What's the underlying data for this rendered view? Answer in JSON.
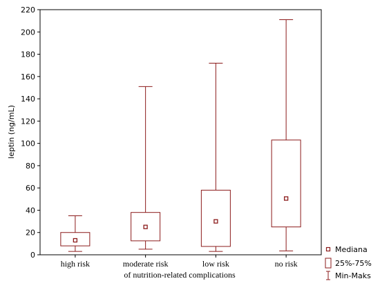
{
  "chart_data": {
    "type": "boxplot",
    "title": "",
    "xlabel": "of nutrition-related complications",
    "ylabel": "leptin (ng/mL)",
    "ylim": [
      0,
      220
    ],
    "yticks": [
      0,
      20,
      40,
      60,
      80,
      100,
      120,
      140,
      160,
      180,
      200,
      220
    ],
    "categories": [
      "high risk",
      "moderate risk",
      "low risk",
      "no risk"
    ],
    "boxes": [
      {
        "category": "high risk",
        "min": 3,
        "q1": 8,
        "median": 13,
        "q3": 20,
        "max": 35
      },
      {
        "category": "moderate risk",
        "min": 5,
        "q1": 12.5,
        "median": 25,
        "q3": 38,
        "max": 151
      },
      {
        "category": "low risk",
        "min": 3,
        "q1": 7.5,
        "median": 30,
        "q3": 58,
        "max": 172
      },
      {
        "category": "no risk",
        "min": 3.5,
        "q1": 25,
        "median": 50.5,
        "q3": 103,
        "max": 211
      }
    ],
    "legend": {
      "position": "bottom-right",
      "items": [
        {
          "label": "Mediana",
          "symbol": "small-square"
        },
        {
          "label": "25%-75%",
          "symbol": "box"
        },
        {
          "label": "Min-Maks",
          "symbol": "whisker"
        }
      ]
    },
    "grid": false,
    "colors": {
      "box_stroke": "#8b1a1a",
      "axis": "#000000",
      "background": "#ffffff"
    }
  }
}
